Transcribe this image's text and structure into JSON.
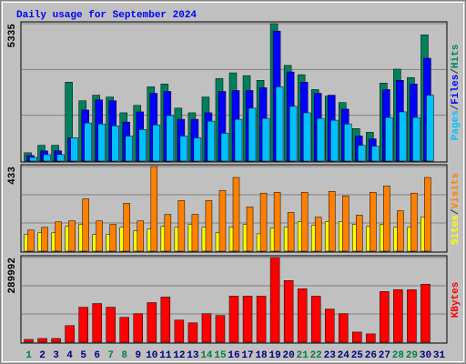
{
  "chart_data": [
    {
      "type": "bar",
      "title": "Daily usage for September 2024",
      "ylim": [
        0,
        5335
      ],
      "yticks": [
        5335
      ],
      "grid": true,
      "legend_separator": "/",
      "series": [
        {
          "name": "Hits",
          "color": "#00805c",
          "values": [
            324,
            613,
            613,
            3064,
            2343,
            2559,
            2487,
            1875,
            2163,
            2884,
            2992,
            2055,
            1875,
            2487,
            3208,
            3425,
            3317,
            3136,
            5335,
            3713,
            3353,
            2776,
            2523,
            2271,
            1262,
            1118,
            3028,
            3569,
            3244,
            4903,
            0
          ]
        },
        {
          "name": "Files",
          "color": "#0000ff",
          "values": [
            216,
            397,
            397,
            901,
            1983,
            2379,
            2343,
            1514,
            1911,
            2632,
            2704,
            1622,
            1622,
            1875,
            2704,
            2740,
            2740,
            2848,
            5047,
            3461,
            3064,
            2632,
            2559,
            2019,
            974,
            865,
            2776,
            3136,
            2992,
            3993,
            0
          ]
        },
        {
          "name": "Pages",
          "color": "#00c0ff",
          "values": [
            144,
            252,
            252,
            901,
            1479,
            1442,
            1370,
            973,
            1226,
            1406,
            1767,
            973,
            901,
            1550,
            1081,
            1622,
            2055,
            1658,
            2884,
            2127,
            1875,
            1658,
            1586,
            1442,
            613,
            577,
            1694,
            1911,
            1694,
            2560,
            0
          ]
        }
      ]
    },
    {
      "type": "bar",
      "ylim": [
        0,
        433
      ],
      "yticks": [
        433
      ],
      "grid": true,
      "legend_separator": "/",
      "series": [
        {
          "name": "Visits",
          "color": "#ff8000",
          "values": [
            108,
            122,
            150,
            155,
            268,
            155,
            137,
            245,
            155,
            433,
            188,
            259,
            188,
            259,
            311,
            377,
            226,
            297,
            301,
            198,
            301,
            174,
            306,
            283,
            184,
            301,
            334,
            207,
            297,
            377,
            0
          ]
        },
        {
          "name": "Sites",
          "color": "#ffff00",
          "values": [
            85,
            94,
            94,
            127,
            137,
            85,
            85,
            122,
            104,
            113,
            127,
            122,
            137,
            122,
            94,
            122,
            137,
            89,
            118,
            122,
            151,
            132,
            151,
            151,
            137,
            127,
            137,
            122,
            122,
            174,
            0
          ]
        }
      ]
    },
    {
      "type": "bar",
      "ylim": [
        0,
        289992
      ],
      "yticks": [
        289992
      ],
      "grid": true,
      "categories": [
        "1",
        "2",
        "3",
        "4",
        "5",
        "6",
        "7",
        "8",
        "9",
        "10",
        "11",
        "12",
        "13",
        "14",
        "15",
        "16",
        "17",
        "18",
        "19",
        "20",
        "21",
        "22",
        "23",
        "24",
        "25",
        "26",
        "27",
        "28",
        "29",
        "30",
        "31"
      ],
      "category_colors": [
        "#008040",
        "#00007f",
        "#00007f",
        "#00007f",
        "#00007f",
        "#00007f",
        "#008040",
        "#008040",
        "#00007f",
        "#00007f",
        "#00007f",
        "#00007f",
        "#00007f",
        "#008040",
        "#008040",
        "#00007f",
        "#00007f",
        "#00007f",
        "#00007f",
        "#00007f",
        "#008040",
        "#008040",
        "#00007f",
        "#00007f",
        "#00007f",
        "#00007f",
        "#00007f",
        "#008040",
        "#008040",
        "#00007f",
        "#00007f"
      ],
      "series": [
        {
          "name": "KBytes",
          "color": "#ff0000",
          "values": [
            9456,
            12608,
            12608,
            56736,
            119776,
            132384,
            119776,
            85104,
            97712,
            135536,
            154448,
            75648,
            66192,
            97712,
            91408,
            157600,
            157600,
            157600,
            289992,
            211184,
            182816,
            157600,
            113472,
            97712,
            34672,
            28368,
            173360,
            179664,
            179664,
            198576,
            0
          ]
        }
      ]
    }
  ]
}
